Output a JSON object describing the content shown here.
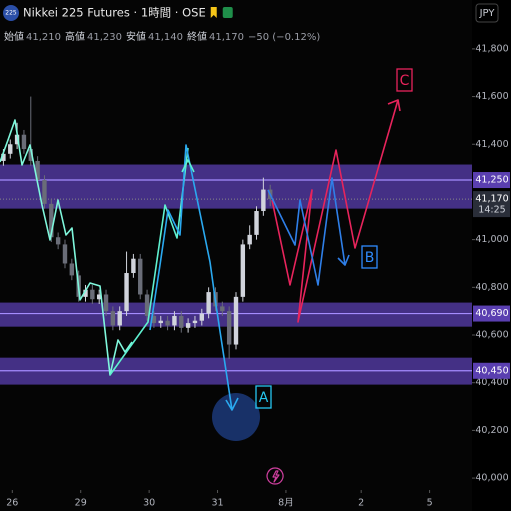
{
  "header": {
    "symbol_icon": "225",
    "title": "Nikkei 225 Futures · 1時間 · OSE",
    "currency": "JPY",
    "ohlc": [
      {
        "label": "始値",
        "value": "41,210"
      },
      {
        "label": "高値",
        "value": "41,230"
      },
      {
        "label": "安値",
        "value": "41,140"
      },
      {
        "label": "終値",
        "value": "41,170"
      }
    ],
    "change": "−50 (−0.12%)"
  },
  "chart_data": {
    "type": "candlestick",
    "x": [
      -0.13,
      -0.03,
      0.07,
      0.17,
      0.27,
      0.37,
      0.47,
      0.57,
      0.67,
      0.77,
      0.87,
      0.97,
      1.07,
      1.17,
      1.27,
      1.37,
      1.47,
      1.57,
      1.67,
      1.77,
      1.87,
      1.97,
      2.07,
      2.17,
      2.27,
      2.37,
      2.47,
      2.57,
      2.67,
      2.77,
      2.87,
      2.97,
      3.07,
      3.17,
      3.27,
      3.37,
      3.47,
      3.57,
      3.67,
      3.77
    ],
    "open": [
      41330,
      41360,
      41400,
      41440,
      41380,
      41330,
      41250,
      41150,
      41010,
      40980,
      40900,
      40850,
      40760,
      40790,
      40750,
      40770,
      40700,
      40640,
      40700,
      40860,
      40920,
      40770,
      40680,
      40650,
      40660,
      40640,
      40680,
      40630,
      40650,
      40660,
      40690,
      40780,
      40720,
      40700,
      40560,
      40760,
      40980,
      41020,
      41120,
      41210
    ],
    "high": [
      41380,
      41420,
      41490,
      41460,
      41600,
      41350,
      41270,
      41170,
      41030,
      41000,
      40920,
      40870,
      40810,
      40810,
      40790,
      40790,
      40720,
      40720,
      40950,
      40940,
      40940,
      40790,
      40700,
      40680,
      40680,
      40700,
      40700,
      40670,
      40680,
      40710,
      40800,
      40800,
      40740,
      40720,
      40780,
      41000,
      41060,
      41140,
      41260,
      41230
    ],
    "low": [
      41310,
      41340,
      41380,
      41360,
      41310,
      41230,
      41130,
      40990,
      40960,
      40880,
      40830,
      40740,
      40740,
      40730,
      40730,
      40680,
      40620,
      40620,
      40680,
      40840,
      40750,
      40660,
      40630,
      40630,
      40620,
      40620,
      40610,
      40610,
      40630,
      40640,
      40670,
      40700,
      40680,
      40500,
      40540,
      40740,
      40960,
      41000,
      41100,
      41140
    ],
    "close": [
      41360,
      41400,
      41440,
      41380,
      41330,
      41250,
      41150,
      41010,
      40980,
      40900,
      40850,
      40760,
      40790,
      40750,
      40770,
      40700,
      40640,
      40700,
      40860,
      40920,
      40770,
      40680,
      40650,
      40660,
      40640,
      40680,
      40630,
      40650,
      40660,
      40690,
      40780,
      40720,
      40700,
      40560,
      40760,
      40980,
      41020,
      41120,
      41210,
      41170
    ],
    "up_color": "#d1d4dc",
    "down_color": "#6a6d78",
    "xlim": [
      -0.18,
      6.72
    ],
    "xticks": [
      {
        "value": 0,
        "label": "26"
      },
      {
        "value": 1,
        "label": "29"
      },
      {
        "value": 2,
        "label": "30"
      },
      {
        "value": 3,
        "label": "31"
      },
      {
        "value": 4,
        "label": "8月"
      },
      {
        "value": 5.1,
        "label": "2"
      },
      {
        "value": 6.1,
        "label": "5"
      }
    ],
    "ylim": [
      39950,
      42005
    ],
    "yticks": [
      {
        "value": 40000,
        "label": "40,000"
      },
      {
        "value": 40200,
        "label": "40,200"
      },
      {
        "value": 40400,
        "label": "40,400"
      },
      {
        "value": 40600,
        "label": "40,600"
      },
      {
        "value": 40800,
        "label": "40,800"
      },
      {
        "value": 41000,
        "label": "41,000"
      },
      {
        "value": 41400,
        "label": "41,400"
      },
      {
        "value": 41600,
        "label": "41,600"
      },
      {
        "value": 41800,
        "label": "41,800"
      }
    ],
    "zones": [
      {
        "value": 41250,
        "label": "41,250",
        "low": 41130,
        "high": 41315
      },
      {
        "value": 40690,
        "label": "40,690",
        "low": 40635,
        "high": 40736
      },
      {
        "value": 40450,
        "label": "40,450",
        "low": 40392,
        "high": 40505
      }
    ],
    "zone_color": "#5a3fb0",
    "last_price": {
      "value": 41170,
      "label": "41,170",
      "countdown": "14:25"
    },
    "annotations": [
      {
        "label": "A",
        "color": "#26c6f0"
      },
      {
        "label": "B",
        "color": "#2f8cff"
      },
      {
        "label": "C",
        "color": "#e8245c"
      }
    ]
  }
}
